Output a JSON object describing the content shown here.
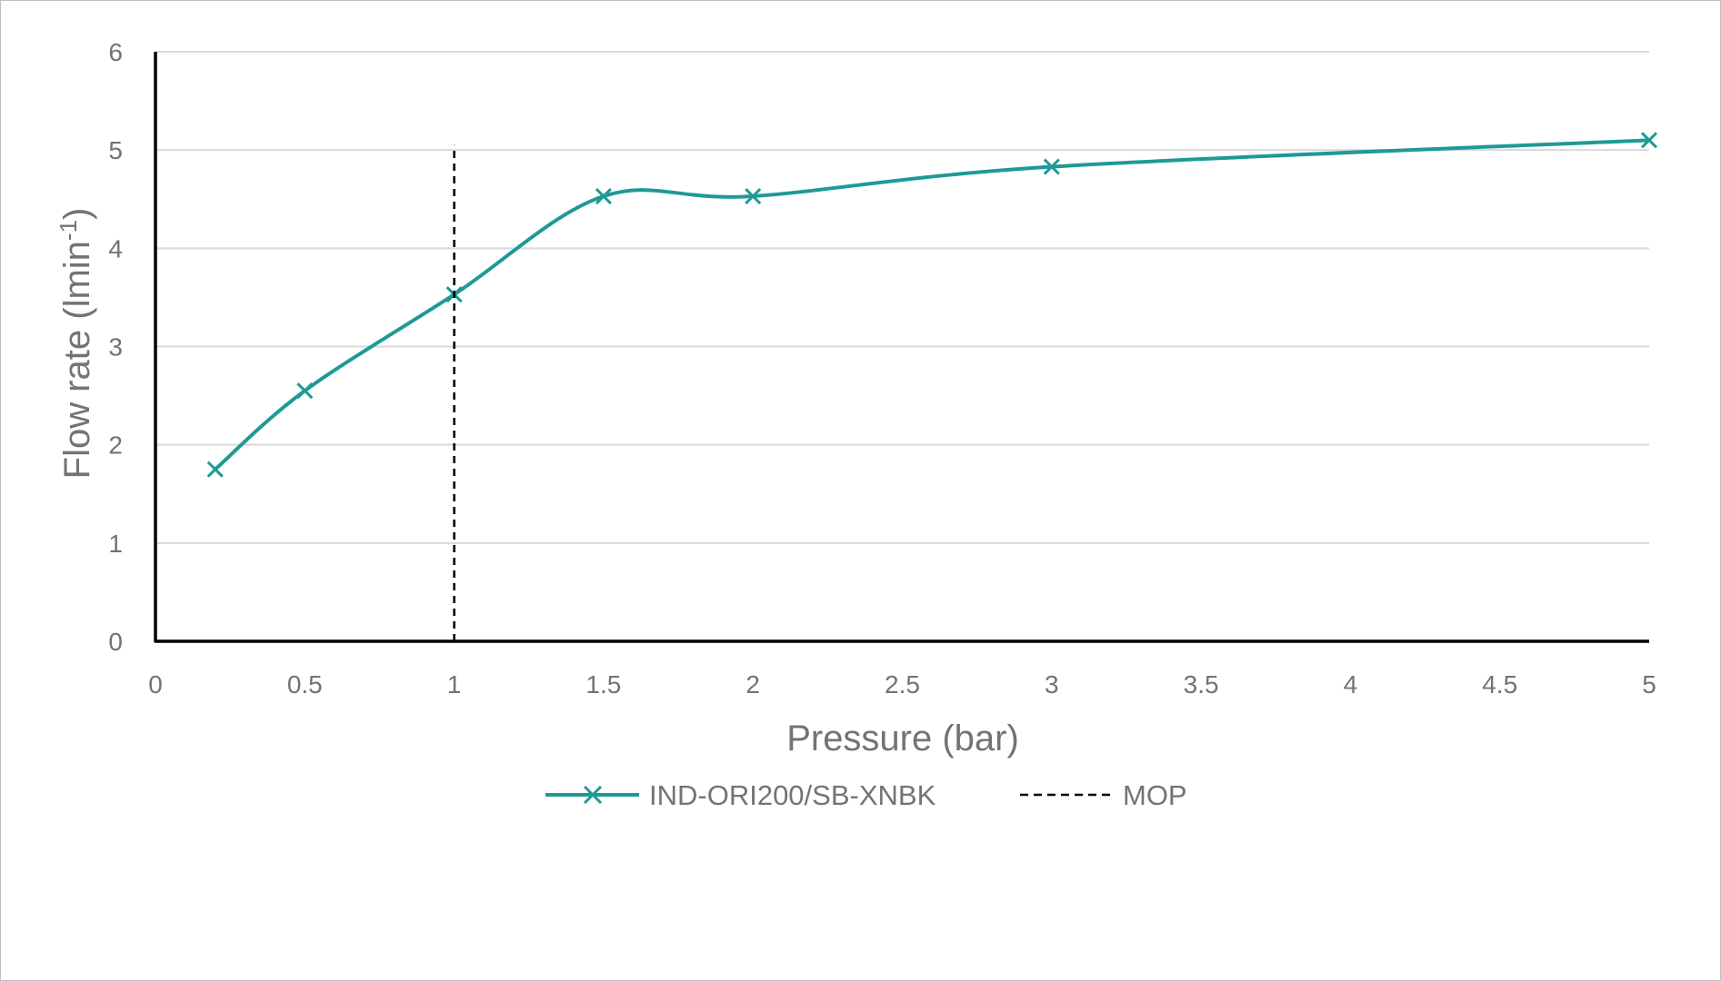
{
  "chart_data": {
    "type": "line",
    "xlabel": "Pressure (bar)",
    "ylabel": {
      "text": "Flow rate (lmin",
      "sup": "-1",
      "end": ")"
    },
    "xlim": [
      0,
      5
    ],
    "ylim": [
      0,
      6
    ],
    "x_ticks": [
      "0",
      "0.5",
      "1",
      "1.5",
      "2",
      "2.5",
      "3",
      "3.5",
      "4",
      "4.5",
      "5"
    ],
    "y_ticks": [
      "0",
      "1",
      "2",
      "3",
      "4",
      "5",
      "6"
    ],
    "grid": "horizontal",
    "legend_position": "bottom",
    "series": [
      {
        "name": "IND-ORI200/SB-XNBK",
        "color": "#1e9a96",
        "marker": "x",
        "smooth": true,
        "x": [
          0.2,
          0.5,
          1.0,
          1.5,
          2.0,
          3.0,
          5.0
        ],
        "y": [
          1.75,
          2.55,
          3.53,
          4.53,
          4.53,
          4.83,
          5.1
        ]
      },
      {
        "name": "MOP",
        "color": "#000000",
        "style": "dashed",
        "x": [
          1.0,
          1.0
        ],
        "y": [
          0,
          5.05
        ]
      }
    ]
  }
}
